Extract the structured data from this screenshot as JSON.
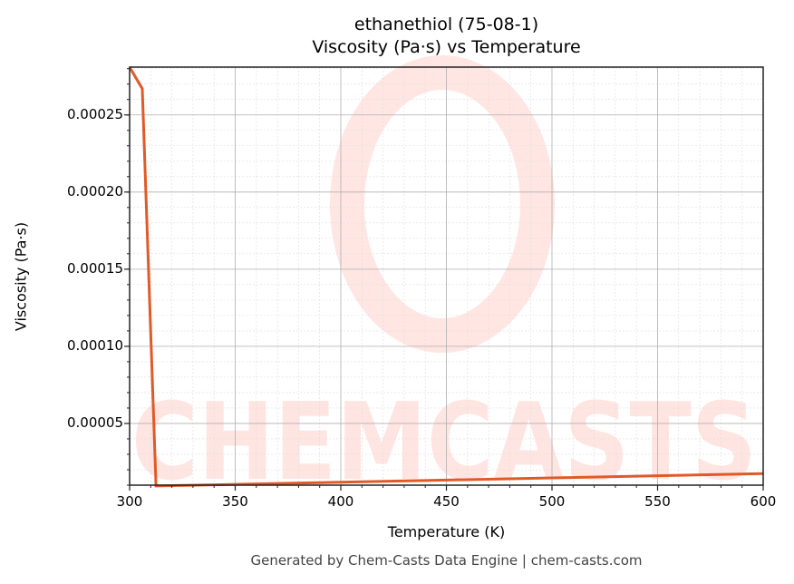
{
  "chart_data": {
    "type": "line",
    "title": "ethanethiol (75-08-1)",
    "subtitle": "Viscosity (Pa·s) vs Temperature",
    "xlabel": "Temperature (K)",
    "ylabel": "Viscosity (Pa·s)",
    "xlim": [
      300,
      600
    ],
    "ylim": [
      1e-05,
      0.000281
    ],
    "xticks": [
      "300",
      "350",
      "400",
      "450",
      "500",
      "550",
      "600"
    ],
    "yticks": [
      "0.00005",
      "0.00010",
      "0.00015",
      "0.00020",
      "0.00025"
    ],
    "grid": true,
    "series": [
      {
        "name": "Viscosity",
        "color": "#e05a28",
        "x": [
          300,
          306,
          312.5,
          350,
          400,
          450,
          500,
          550,
          600
        ],
        "y": [
          0.000281,
          0.000267,
          9.5e-06,
          1.05e-05,
          1.19e-05,
          1.33e-05,
          1.47e-05,
          1.61e-05,
          1.75e-05
        ]
      }
    ],
    "watermark": "CHEMCASTS"
  },
  "footer": "Generated by Chem-Casts Data Engine | chem-casts.com"
}
